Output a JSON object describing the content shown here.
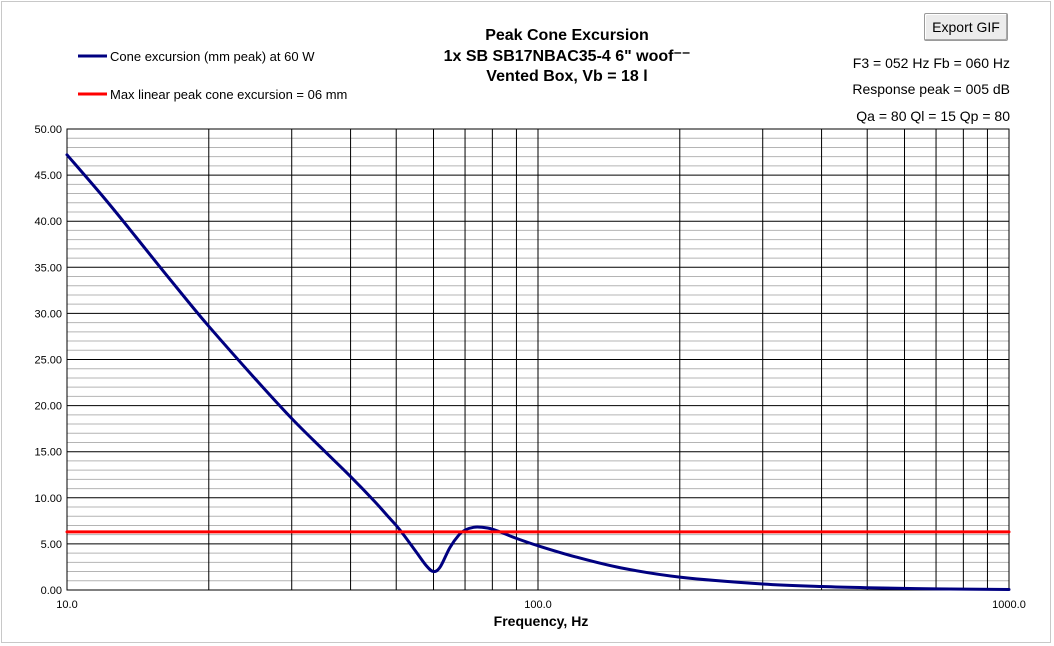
{
  "toolbar": {
    "export_label": "Export GIF"
  },
  "info": {
    "line1": "F3 = 052 Hz  Fb = 060 Hz",
    "line2": "Response peak = 005 dB",
    "line3": "Qa = 80  Ql = 15  Qp = 80"
  },
  "colors": {
    "excursion": "#000080",
    "limit": "#ff0000",
    "major_grid": "#000000",
    "minor_grid": "#b4b4b4"
  },
  "chart_data": {
    "type": "line",
    "title": "Peak Cone Excursion",
    "subtitle_lines": [
      "1x SB SB17NBAC35-4 6\" woof⁻⁻",
      "Vented Box, Vb = 18 l"
    ],
    "xlabel": "Frequency, Hz",
    "ylabel": "",
    "xscale": "log",
    "xlim": [
      10,
      1000
    ],
    "ylim": [
      0,
      50
    ],
    "x_ticks": [
      "10.0",
      "100.0",
      "1000.0"
    ],
    "y_ticks": [
      "0.00",
      "5.00",
      "10.00",
      "15.00",
      "20.00",
      "25.00",
      "30.00",
      "35.00",
      "40.00",
      "45.00",
      "50.00"
    ],
    "grid": true,
    "legend_position": "top-left",
    "series": [
      {
        "name": "Cone excursion (mm peak) at 60 W",
        "color": "#000080",
        "x": [
          10,
          12,
          14,
          16,
          18,
          20,
          25,
          30,
          35,
          40,
          45,
          48,
          50,
          52,
          55,
          58,
          60,
          62,
          65,
          68,
          70,
          73,
          76,
          80,
          85,
          90,
          100,
          120,
          150,
          200,
          300,
          400,
          500,
          700,
          1000
        ],
        "y": [
          47.2,
          42.5,
          38.3,
          34.6,
          31.4,
          28.6,
          23.0,
          18.6,
          15.2,
          12.3,
          9.6,
          8.0,
          7.0,
          5.9,
          4.2,
          2.6,
          2.0,
          2.5,
          4.6,
          6.0,
          6.5,
          6.8,
          6.8,
          6.6,
          6.1,
          5.6,
          4.8,
          3.6,
          2.4,
          1.4,
          0.65,
          0.38,
          0.25,
          0.12,
          0.06
        ]
      },
      {
        "name": "Max linear peak cone excursion = 06 mm",
        "color": "#ff0000",
        "x": [
          10,
          1000
        ],
        "y": [
          6.3,
          6.3
        ]
      }
    ]
  }
}
